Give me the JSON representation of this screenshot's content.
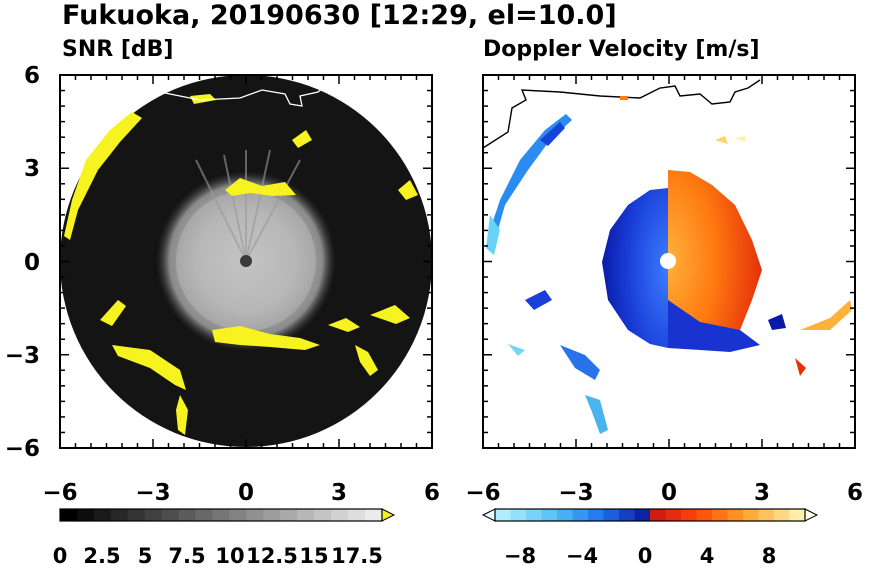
{
  "title": "Fukuoka, 20190630 [12:29, el=10.0]",
  "panels": [
    {
      "subtitle": "SNR [dB]"
    },
    {
      "subtitle": "Doppler Velocity [m/s]"
    }
  ],
  "chart_data": [
    {
      "type": "heatmap",
      "title": "SNR [dB]",
      "xlim": [
        -6,
        6
      ],
      "ylim": [
        -6,
        6
      ],
      "x_ticks": [
        "−6",
        "−3",
        "0",
        "3",
        "6"
      ],
      "y_ticks": [
        "6",
        "3",
        "0",
        "−3",
        "−6"
      ],
      "x_tick_values": [
        -6,
        -3,
        0,
        3,
        6
      ],
      "y_tick_values": [
        6,
        3,
        0,
        -3,
        -6
      ],
      "radar_range": 6,
      "colorbar": {
        "min": 0,
        "max": 19,
        "step": 1,
        "tick_labels": [
          "0",
          "2.5",
          "5",
          "7.5",
          "10",
          "12.5",
          "15",
          "17.5"
        ],
        "tick_values": [
          0,
          2.5,
          5,
          7.5,
          10,
          12.5,
          15,
          17.5
        ],
        "extend": "max",
        "over_color": "#f7f320",
        "colormap": "grayscale"
      }
    },
    {
      "type": "heatmap",
      "title": "Doppler Velocity [m/s]",
      "xlim": [
        -6,
        6
      ],
      "ylim": [
        -6,
        6
      ],
      "x_ticks": [
        "−6",
        "−3",
        "0",
        "3",
        "6"
      ],
      "y_ticks": [],
      "x_tick_values": [
        -6,
        -3,
        0,
        3,
        6
      ],
      "y_tick_values": [
        6,
        3,
        0,
        -3,
        -6
      ],
      "radar_range": 6,
      "colorbar": {
        "min": -10,
        "max": 10,
        "step": 1,
        "tick_labels": [
          "−8",
          "−4",
          "0",
          "4",
          "8"
        ],
        "tick_values": [
          -8,
          -4,
          0,
          4,
          8
        ],
        "extend": "both",
        "colormap": "diverging blue-white / red-yellow"
      }
    }
  ]
}
